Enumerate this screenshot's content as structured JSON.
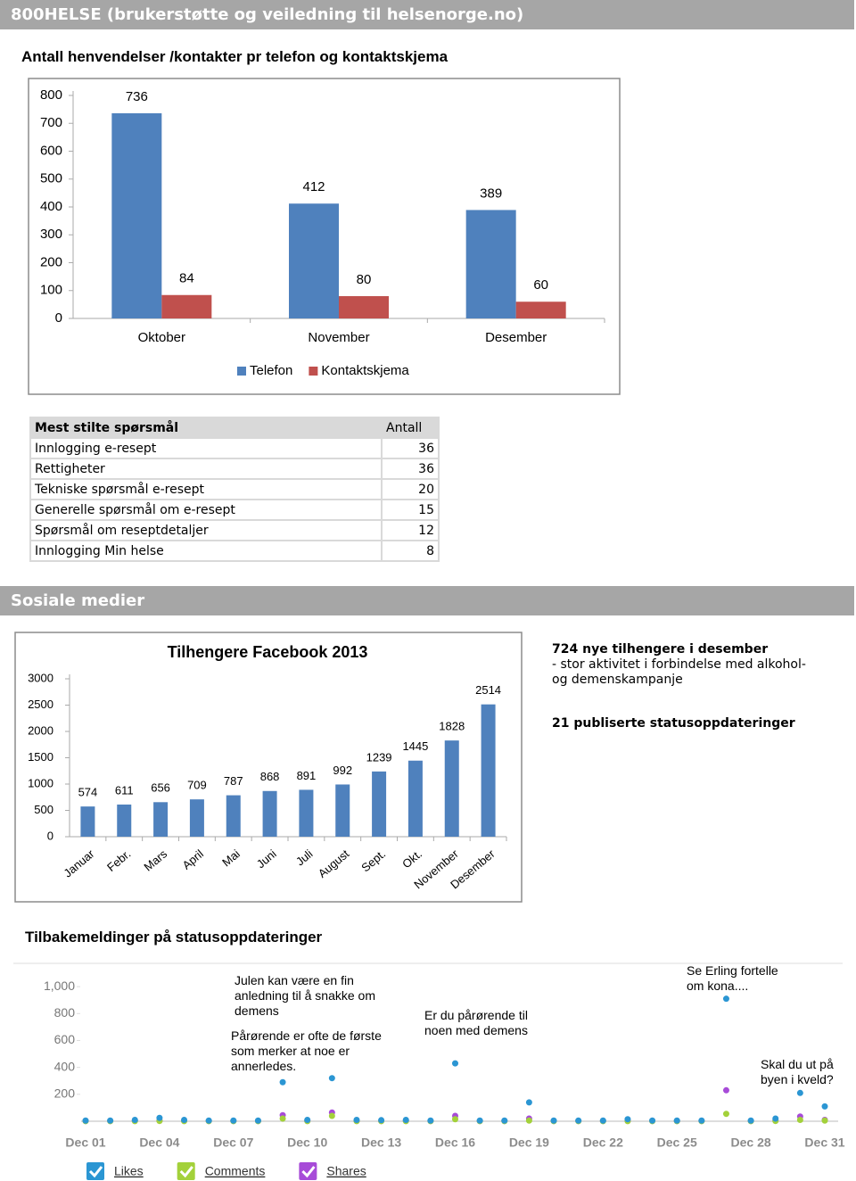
{
  "header": {
    "title": "800HELSE (brukerstøtte og veiledning til helsenorge.no)"
  },
  "chart_data": [
    {
      "type": "bar",
      "title": "Antall henvendelser /kontakter pr telefon og kontaktskjema",
      "categories": [
        "Oktober",
        "November",
        "Desember"
      ],
      "series": [
        {
          "name": "Telefon",
          "color": "#4f81bd",
          "values": [
            736,
            412,
            389
          ]
        },
        {
          "name": "Kontaktskjema",
          "color": "#c0504d",
          "values": [
            84,
            80,
            60
          ]
        }
      ],
      "ylim": [
        0,
        800
      ],
      "yticks": [
        0,
        100,
        200,
        300,
        400,
        500,
        600,
        700,
        800
      ],
      "legend": "bottom"
    },
    {
      "type": "bar",
      "title": "Tilhengere Facebook 2013",
      "categories": [
        "Januar",
        "Febr.",
        "Mars",
        "April",
        "Mai",
        "Juni",
        "Juli",
        "August",
        "Sept.",
        "Okt.",
        "November",
        "Desember"
      ],
      "values": [
        574,
        611,
        656,
        709,
        787,
        868,
        891,
        992,
        1239,
        1445,
        1828,
        2514
      ],
      "color": "#4f81bd",
      "ylim": [
        0,
        3000
      ],
      "yticks": [
        0,
        500,
        1000,
        1500,
        2000,
        2500,
        3000
      ]
    },
    {
      "type": "line",
      "title": "Tilbakemeldinger på statusoppdateringer",
      "categories": [
        "Dec 01",
        null,
        null,
        "Dec 04",
        null,
        null,
        "Dec 07",
        null,
        null,
        "Dec 10",
        null,
        null,
        "Dec 13",
        null,
        null,
        "Dec 16",
        null,
        null,
        "Dec 19",
        null,
        null,
        "Dec 22",
        null,
        null,
        "Dec 25",
        null,
        null,
        "Dec 28",
        null,
        null,
        "Dec 31"
      ],
      "series": [
        {
          "name": "Likes",
          "color": "#2b96d3",
          "values": [
            5,
            5,
            10,
            25,
            10,
            5,
            5,
            5,
            290,
            10,
            320,
            10,
            8,
            10,
            5,
            430,
            5,
            5,
            140,
            5,
            5,
            5,
            15,
            5,
            5,
            5,
            910,
            5,
            20,
            210,
            110
          ]
        },
        {
          "name": "Comments",
          "color": "#a3d13a",
          "values": [
            1,
            1,
            1,
            2,
            1,
            1,
            1,
            1,
            20,
            1,
            40,
            1,
            1,
            1,
            1,
            15,
            1,
            1,
            5,
            1,
            1,
            1,
            1,
            1,
            1,
            1,
            55,
            1,
            2,
            10,
            5
          ]
        },
        {
          "name": "Shares",
          "color": "#a74bd8",
          "values": [
            2,
            2,
            3,
            5,
            3,
            2,
            2,
            2,
            45,
            3,
            65,
            3,
            2,
            3,
            2,
            40,
            2,
            2,
            20,
            2,
            2,
            2,
            3,
            2,
            2,
            2,
            230,
            2,
            5,
            35,
            10
          ]
        }
      ],
      "ylim": [
        0,
        1100
      ],
      "yticks": [
        200,
        400,
        600,
        800,
        {
          "value": 1000,
          "label": "1,000"
        }
      ],
      "legend": "bottom",
      "annotations": [
        "Julen kan være en fin anledning til å snakke om demens",
        "Pårørende er ofte de første som merker at noe er annerledes.",
        "Er du pårørende til noen med demens",
        "Se Erling fortelle om kona....",
        "Skal du ut på byen i kveld?"
      ]
    }
  ],
  "table": {
    "header": [
      "Mest stilte spørsmål",
      "Antall"
    ],
    "rows": [
      [
        "Innlogging e-resept",
        36
      ],
      [
        "Rettigheter",
        36
      ],
      [
        "Tekniske spørsmål e-resept",
        20
      ],
      [
        "Generelle spørsmål om e-resept",
        15
      ],
      [
        "Spørsmål om reseptdetaljer",
        12
      ],
      [
        "Innlogging Min helse",
        8
      ]
    ]
  },
  "social": {
    "title": "Sosiale medier",
    "notes": [
      "724 nye tilhengere i desember",
      "- stor aktivitet i forbindelse med alkohol- og demenskampanje",
      "21 publiserte statusoppdateringer"
    ]
  }
}
